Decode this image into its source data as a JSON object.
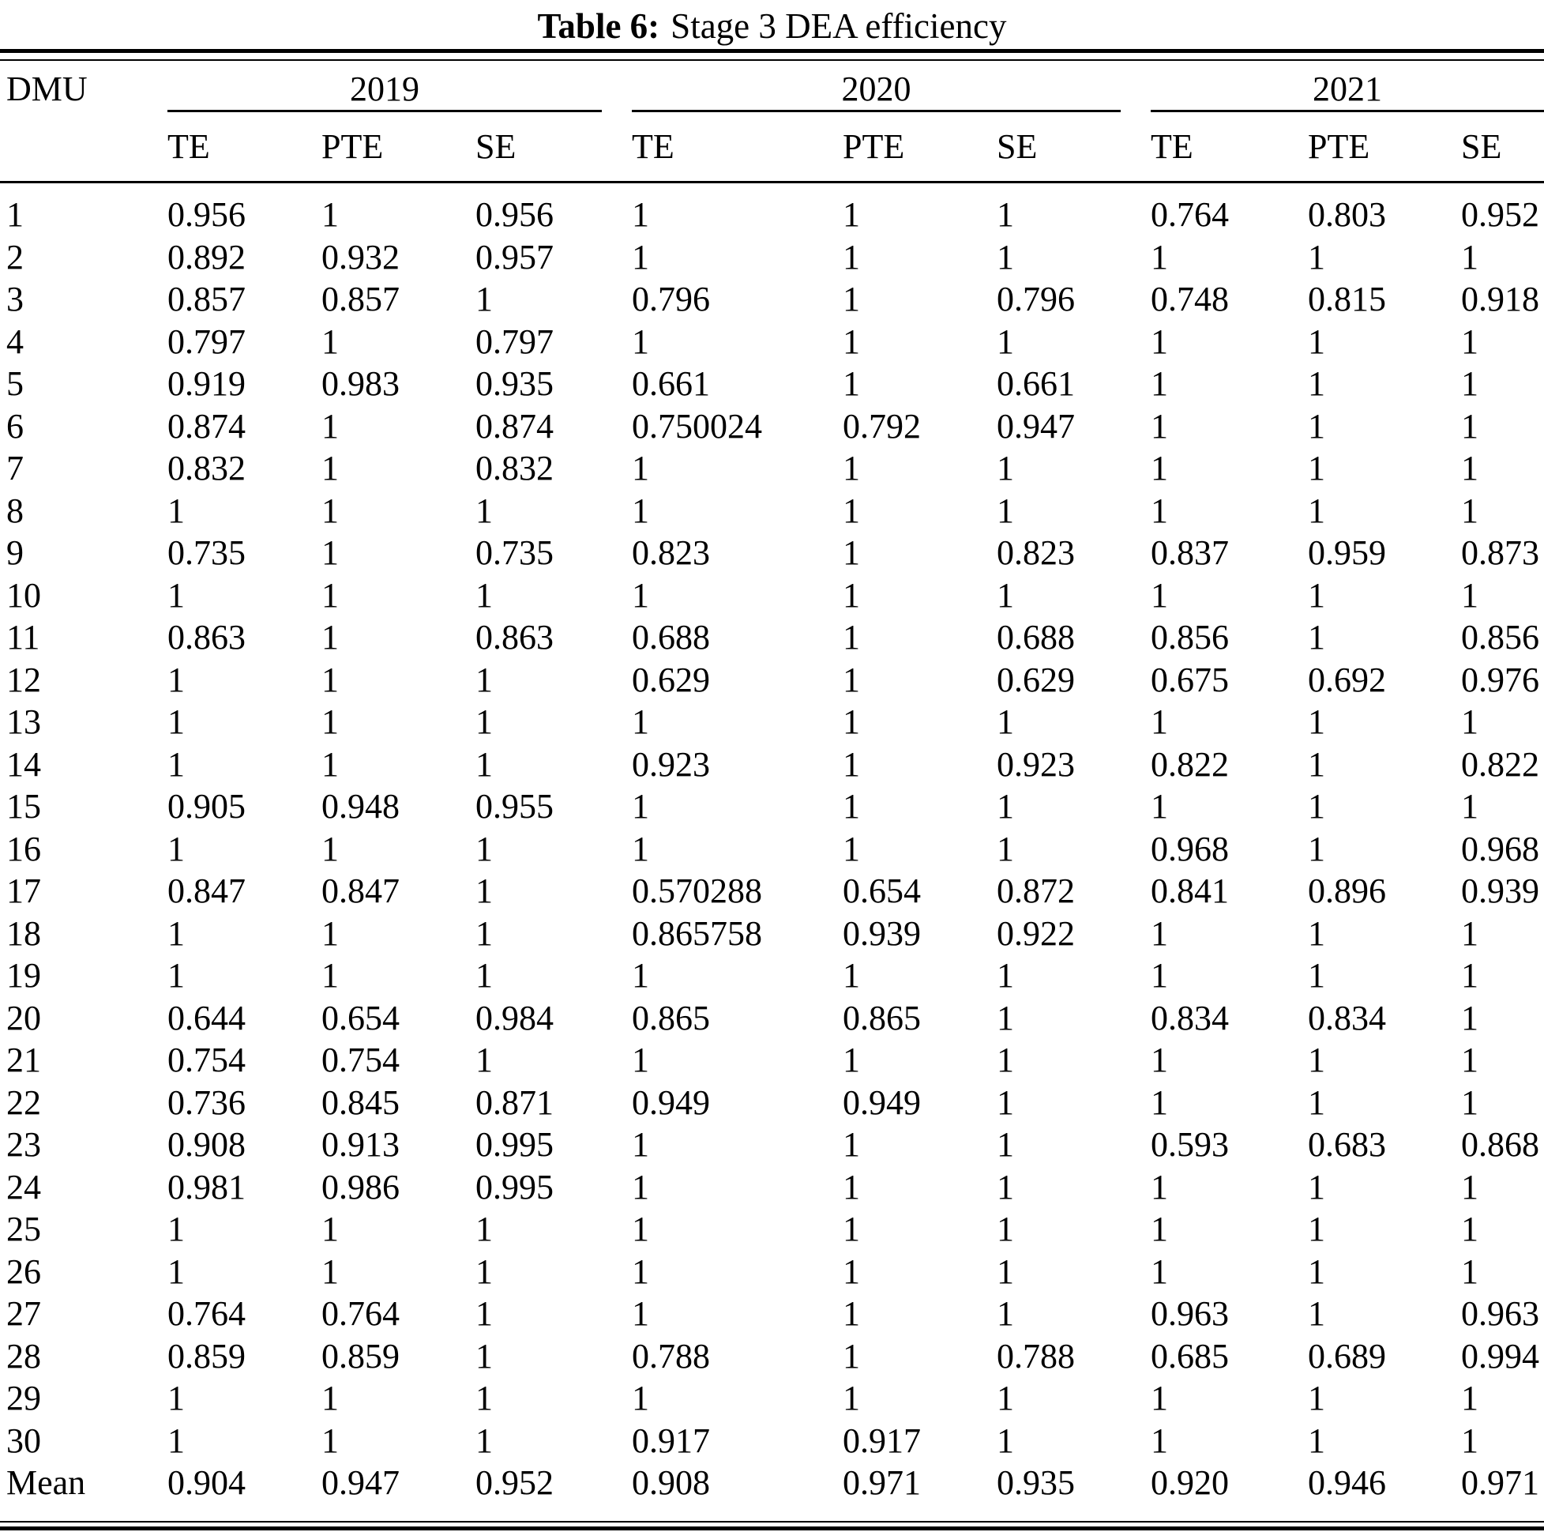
{
  "title": {
    "label": "Table 6:",
    "text": "Stage 3 DEA efficiency"
  },
  "table": {
    "corner_header": "DMU",
    "year_groups": [
      {
        "label": "2019",
        "subcolumns": [
          "TE",
          "PTE",
          "SE"
        ]
      },
      {
        "label": "2020",
        "subcolumns": [
          "TE",
          "PTE",
          "SE"
        ]
      },
      {
        "label": "2021",
        "subcolumns": [
          "TE",
          "PTE",
          "SE"
        ]
      }
    ],
    "rows": [
      {
        "dmu": "1",
        "values": [
          "0.956",
          "1",
          "0.956",
          "1",
          "1",
          "1",
          "0.764",
          "0.803",
          "0.952"
        ]
      },
      {
        "dmu": "2",
        "values": [
          "0.892",
          "0.932",
          "0.957",
          "1",
          "1",
          "1",
          "1",
          "1",
          "1"
        ]
      },
      {
        "dmu": "3",
        "values": [
          "0.857",
          "0.857",
          "1",
          "0.796",
          "1",
          "0.796",
          "0.748",
          "0.815",
          "0.918"
        ]
      },
      {
        "dmu": "4",
        "values": [
          "0.797",
          "1",
          "0.797",
          "1",
          "1",
          "1",
          "1",
          "1",
          "1"
        ]
      },
      {
        "dmu": "5",
        "values": [
          "0.919",
          "0.983",
          "0.935",
          "0.661",
          "1",
          "0.661",
          "1",
          "1",
          "1"
        ]
      },
      {
        "dmu": "6",
        "values": [
          "0.874",
          "1",
          "0.874",
          "0.750024",
          "0.792",
          "0.947",
          "1",
          "1",
          "1"
        ]
      },
      {
        "dmu": "7",
        "values": [
          "0.832",
          "1",
          "0.832",
          "1",
          "1",
          "1",
          "1",
          "1",
          "1"
        ]
      },
      {
        "dmu": "8",
        "values": [
          "1",
          "1",
          "1",
          "1",
          "1",
          "1",
          "1",
          "1",
          "1"
        ]
      },
      {
        "dmu": "9",
        "values": [
          "0.735",
          "1",
          "0.735",
          "0.823",
          "1",
          "0.823",
          "0.837",
          "0.959",
          "0.873"
        ]
      },
      {
        "dmu": "10",
        "values": [
          "1",
          "1",
          "1",
          "1",
          "1",
          "1",
          "1",
          "1",
          "1"
        ]
      },
      {
        "dmu": "11",
        "values": [
          "0.863",
          "1",
          "0.863",
          "0.688",
          "1",
          "0.688",
          "0.856",
          "1",
          "0.856"
        ]
      },
      {
        "dmu": "12",
        "values": [
          "1",
          "1",
          "1",
          "0.629",
          "1",
          "0.629",
          "0.675",
          "0.692",
          "0.976"
        ]
      },
      {
        "dmu": "13",
        "values": [
          "1",
          "1",
          "1",
          "1",
          "1",
          "1",
          "1",
          "1",
          "1"
        ]
      },
      {
        "dmu": "14",
        "values": [
          "1",
          "1",
          "1",
          "0.923",
          "1",
          "0.923",
          "0.822",
          "1",
          "0.822"
        ]
      },
      {
        "dmu": "15",
        "values": [
          "0.905",
          "0.948",
          "0.955",
          "1",
          "1",
          "1",
          "1",
          "1",
          "1"
        ]
      },
      {
        "dmu": "16",
        "values": [
          "1",
          "1",
          "1",
          "1",
          "1",
          "1",
          "0.968",
          "1",
          "0.968"
        ]
      },
      {
        "dmu": "17",
        "values": [
          "0.847",
          "0.847",
          "1",
          "0.570288",
          "0.654",
          "0.872",
          "0.841",
          "0.896",
          "0.939"
        ]
      },
      {
        "dmu": "18",
        "values": [
          "1",
          "1",
          "1",
          "0.865758",
          "0.939",
          "0.922",
          "1",
          "1",
          "1"
        ]
      },
      {
        "dmu": "19",
        "values": [
          "1",
          "1",
          "1",
          "1",
          "1",
          "1",
          "1",
          "1",
          "1"
        ]
      },
      {
        "dmu": "20",
        "values": [
          "0.644",
          "0.654",
          "0.984",
          "0.865",
          "0.865",
          "1",
          "0.834",
          "0.834",
          "1"
        ]
      },
      {
        "dmu": "21",
        "values": [
          "0.754",
          "0.754",
          "1",
          "1",
          "1",
          "1",
          "1",
          "1",
          "1"
        ]
      },
      {
        "dmu": "22",
        "values": [
          "0.736",
          "0.845",
          "0.871",
          "0.949",
          "0.949",
          "1",
          "1",
          "1",
          "1"
        ]
      },
      {
        "dmu": "23",
        "values": [
          "0.908",
          "0.913",
          "0.995",
          "1",
          "1",
          "1",
          "0.593",
          "0.683",
          "0.868"
        ]
      },
      {
        "dmu": "24",
        "values": [
          "0.981",
          "0.986",
          "0.995",
          "1",
          "1",
          "1",
          "1",
          "1",
          "1"
        ]
      },
      {
        "dmu": "25",
        "values": [
          "1",
          "1",
          "1",
          "1",
          "1",
          "1",
          "1",
          "1",
          "1"
        ]
      },
      {
        "dmu": "26",
        "values": [
          "1",
          "1",
          "1",
          "1",
          "1",
          "1",
          "1",
          "1",
          "1"
        ]
      },
      {
        "dmu": "27",
        "values": [
          "0.764",
          "0.764",
          "1",
          "1",
          "1",
          "1",
          "0.963",
          "1",
          "0.963"
        ]
      },
      {
        "dmu": "28",
        "values": [
          "0.859",
          "0.859",
          "1",
          "0.788",
          "1",
          "0.788",
          "0.685",
          "0.689",
          "0.994"
        ]
      },
      {
        "dmu": "29",
        "values": [
          "1",
          "1",
          "1",
          "1",
          "1",
          "1",
          "1",
          "1",
          "1"
        ]
      },
      {
        "dmu": "30",
        "values": [
          "1",
          "1",
          "1",
          "0.917",
          "0.917",
          "1",
          "1",
          "1",
          "1"
        ]
      },
      {
        "dmu": "Mean",
        "values": [
          "0.904",
          "0.947",
          "0.952",
          "0.908",
          "0.971",
          "0.935",
          "0.920",
          "0.946",
          "0.971"
        ]
      }
    ]
  }
}
